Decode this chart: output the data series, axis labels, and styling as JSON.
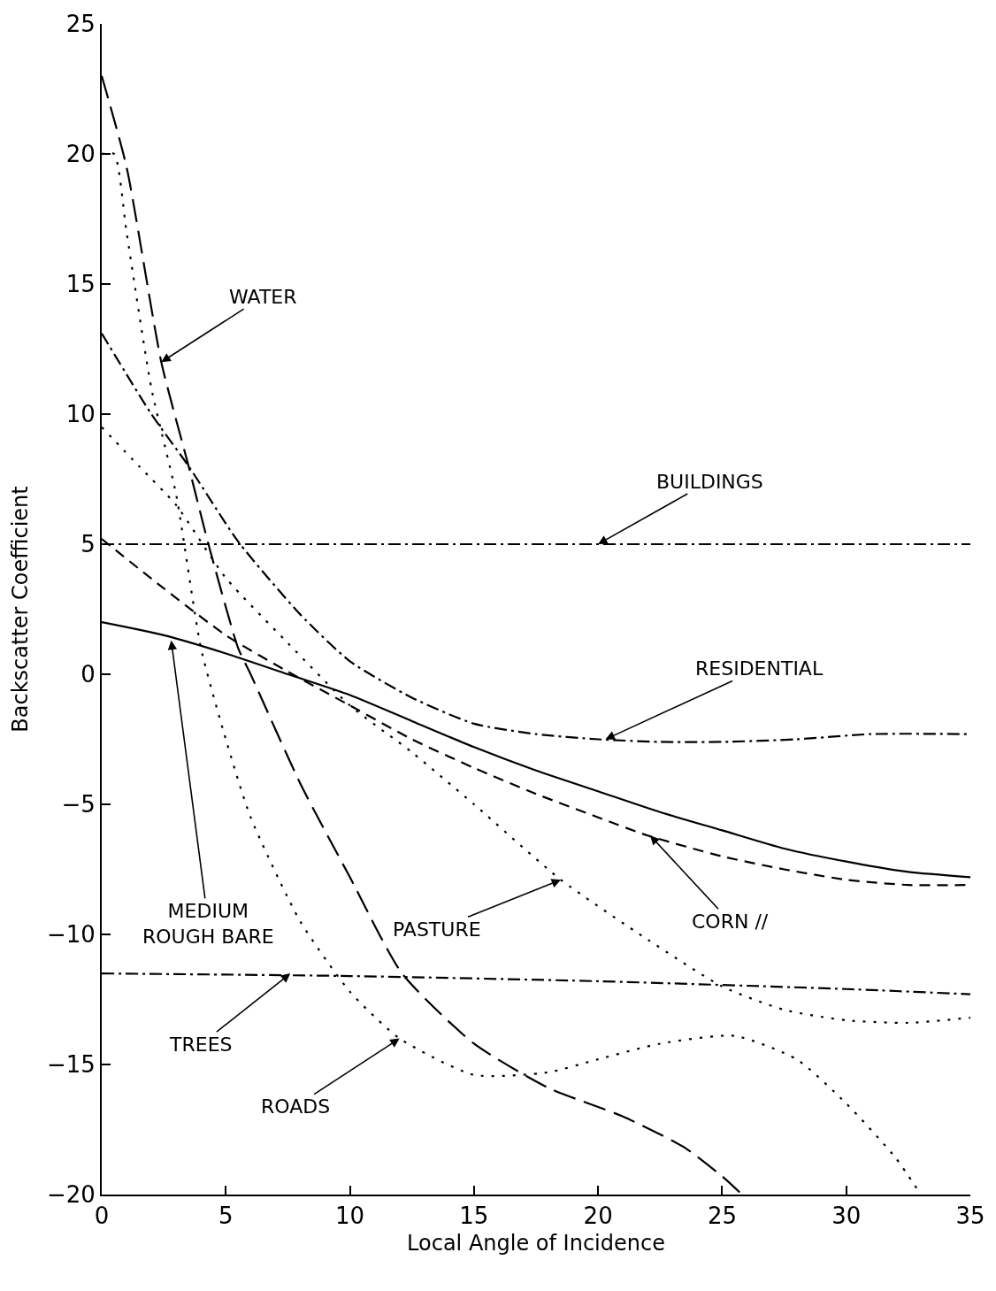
{
  "chart_data": {
    "type": "line",
    "xlabel": "Local Angle of Incidence",
    "ylabel": "Backscatter Coefficient",
    "xlim": [
      0,
      35
    ],
    "ylim": [
      -20,
      25
    ],
    "xticks": [
      0,
      5,
      10,
      15,
      20,
      25,
      30,
      35
    ],
    "yticks": [
      -20,
      -15,
      -10,
      -5,
      0,
      5,
      10,
      15,
      20,
      25
    ],
    "series": [
      {
        "color": "#000000",
        "line_style": "longdash",
        "x": [
          0,
          1,
          2.4,
          3.5,
          4.3,
          5.5,
          6,
          8,
          10,
          12.1,
          15,
          18,
          21,
          23.5,
          25,
          25.8
        ],
        "values": [
          23,
          19.5,
          12,
          8,
          5,
          1,
          0,
          -4.2,
          -7.8,
          -11.5,
          -14.2,
          -15.9,
          -17,
          -18.2,
          -19.3,
          -20
        ]
      },
      {
        "color": "#000000",
        "line_style": "dotted",
        "x": [
          0,
          0.5,
          1,
          2,
          3,
          4,
          5,
          6,
          8,
          10,
          12,
          15,
          18,
          20,
          22.5,
          25.5,
          28,
          30,
          32,
          33
        ],
        "values": [
          20,
          20,
          17,
          11,
          6.9,
          1,
          -2.5,
          -5.5,
          -9.5,
          -12.2,
          -14,
          -15.4,
          -15.3,
          -14.8,
          -14.2,
          -13.9,
          -14.8,
          -16.5,
          -18.6,
          -20
        ]
      },
      {
        "color": "#000000",
        "line_style": "dashdot",
        "x": [
          0,
          2,
          3.5,
          5.5,
          8,
          10,
          12.5,
          15,
          17.5,
          20,
          22.5,
          25,
          28,
          31,
          35
        ],
        "values": [
          13.1,
          10,
          8,
          5.1,
          2.3,
          0.5,
          -0.9,
          -1.9,
          -2.3,
          -2.5,
          -2.6,
          -2.6,
          -2.5,
          -2.3,
          -2.3
        ]
      },
      {
        "color": "#000000",
        "line_style": "solid",
        "x": [
          0,
          2.5,
          5,
          7.5,
          10,
          12.5,
          15,
          17.5,
          20,
          22.5,
          25,
          27.5,
          30,
          32.5,
          35
        ],
        "values": [
          2,
          1.5,
          0.8,
          0,
          -0.8,
          -1.8,
          -2.8,
          -3.7,
          -4.5,
          -5.3,
          -6,
          -6.7,
          -7.2,
          -7.6,
          -7.8
        ]
      },
      {
        "color": "#000000",
        "line_style": "dashed",
        "x": [
          0,
          2.5,
          5,
          7.5,
          10,
          12.5,
          15,
          17.5,
          20,
          22,
          25,
          27.5,
          30,
          32.5,
          35
        ],
        "values": [
          5.2,
          3.3,
          1.5,
          0.1,
          -1.2,
          -2.5,
          -3.6,
          -4.6,
          -5.5,
          -6.2,
          -7,
          -7.5,
          -7.9,
          -8.1,
          -8.1
        ]
      },
      {
        "color": "#000000",
        "line_style": "dotted",
        "x": [
          0,
          1.5,
          3,
          5,
          7.5,
          10,
          12.5,
          15,
          18.5,
          22,
          25,
          27.5,
          30,
          32.5,
          35
        ],
        "values": [
          9.5,
          8,
          6.5,
          3.7,
          1.2,
          -1.2,
          -3,
          -5,
          -7.9,
          -10.2,
          -12,
          -12.9,
          -13.3,
          -13.4,
          -13.2
        ]
      },
      {
        "color": "#000000",
        "line_style": "dashdot",
        "x": [
          0,
          35
        ],
        "values": [
          5,
          5
        ]
      },
      {
        "color": "#000000",
        "line_style": "dashdot",
        "x": [
          0,
          10,
          20,
          30,
          35
        ],
        "values": [
          -11.5,
          -11.6,
          -11.8,
          -12.1,
          -12.3
        ]
      }
    ],
    "annotations": [
      {
        "text": "WATER",
        "x": 2.4,
        "y": 12
      },
      {
        "text": "BUILDINGS",
        "x": 20,
        "y": 5
      },
      {
        "text": "RESIDENTIAL",
        "x": 20.3,
        "y": -2.5
      },
      {
        "text": "MEDIUM\nROUGH BARE",
        "x": 2.8,
        "y": 1.3
      },
      {
        "text": "PASTURE",
        "x": 18.5,
        "y": -7.9
      },
      {
        "text": "CORN //",
        "x": 22.1,
        "y": -6.2
      },
      {
        "text": "TREES",
        "x": 7.6,
        "y": -11.5
      },
      {
        "text": "ROADS",
        "x": 12,
        "y": -14
      }
    ]
  }
}
